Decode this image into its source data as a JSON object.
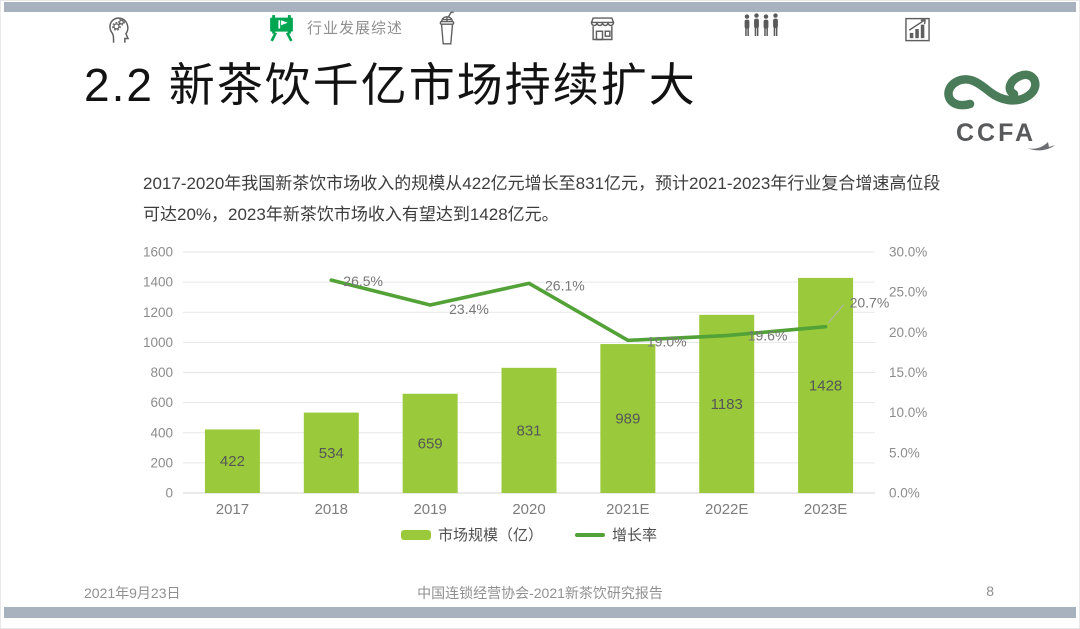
{
  "top_nav": {
    "items": [
      {
        "icon": "head-gears-icon",
        "active": false
      },
      {
        "icon": "presentation-board-icon",
        "label": "行业发展综述",
        "active": true
      },
      {
        "icon": "bubble-tea-cup-icon",
        "active": false
      },
      {
        "icon": "storefront-icon",
        "active": false
      },
      {
        "icon": "people-group-icon",
        "active": false
      },
      {
        "icon": "growth-chart-icon",
        "active": false
      }
    ],
    "active_color": "#00a651"
  },
  "header": {
    "title": "2.2 新茶饮千亿市场持续扩大",
    "logo_text": "CCFA",
    "logo_green": "#4a7c59"
  },
  "intro": {
    "text": "2017-2020年我国新茶饮市场收入的规模从422亿元增长至831亿元，预计2021-2023年行业复合增速高位段可达20%，2023年新茶饮市场收入有望达到1428亿元。"
  },
  "chart_data": {
    "type": "bar+line",
    "categories": [
      "2017",
      "2018",
      "2019",
      "2020",
      "2021E",
      "2022E",
      "2023E"
    ],
    "series": [
      {
        "name": "市场规模（亿）",
        "type": "bar",
        "axis": "left",
        "color": "#9aca3c",
        "values": [
          422,
          534,
          659,
          831,
          989,
          1183,
          1428
        ]
      },
      {
        "name": "增长率",
        "type": "line",
        "axis": "right",
        "color": "#52a238",
        "x_start_index": 1,
        "values": [
          26.5,
          23.4,
          26.1,
          19.0,
          19.6,
          20.7
        ],
        "point_labels": [
          "26.5%",
          "23.4%",
          "26.1%",
          "19.0%",
          "19.6%",
          "20.7%"
        ]
      }
    ],
    "left_axis": {
      "min": 0,
      "max": 1600,
      "step": 200
    },
    "right_axis": {
      "min": 0,
      "max": 30,
      "step": 5,
      "labels": [
        "0.0%",
        "5.0%",
        "10.0%",
        "15.0%",
        "20.0%",
        "25.0%",
        "30.0%"
      ]
    },
    "grid": true,
    "legend_position": "bottom"
  },
  "footer": {
    "date": "2021年9月23日",
    "center": "中国连锁经营协会-2021新茶饮研究报告",
    "page": "8"
  }
}
